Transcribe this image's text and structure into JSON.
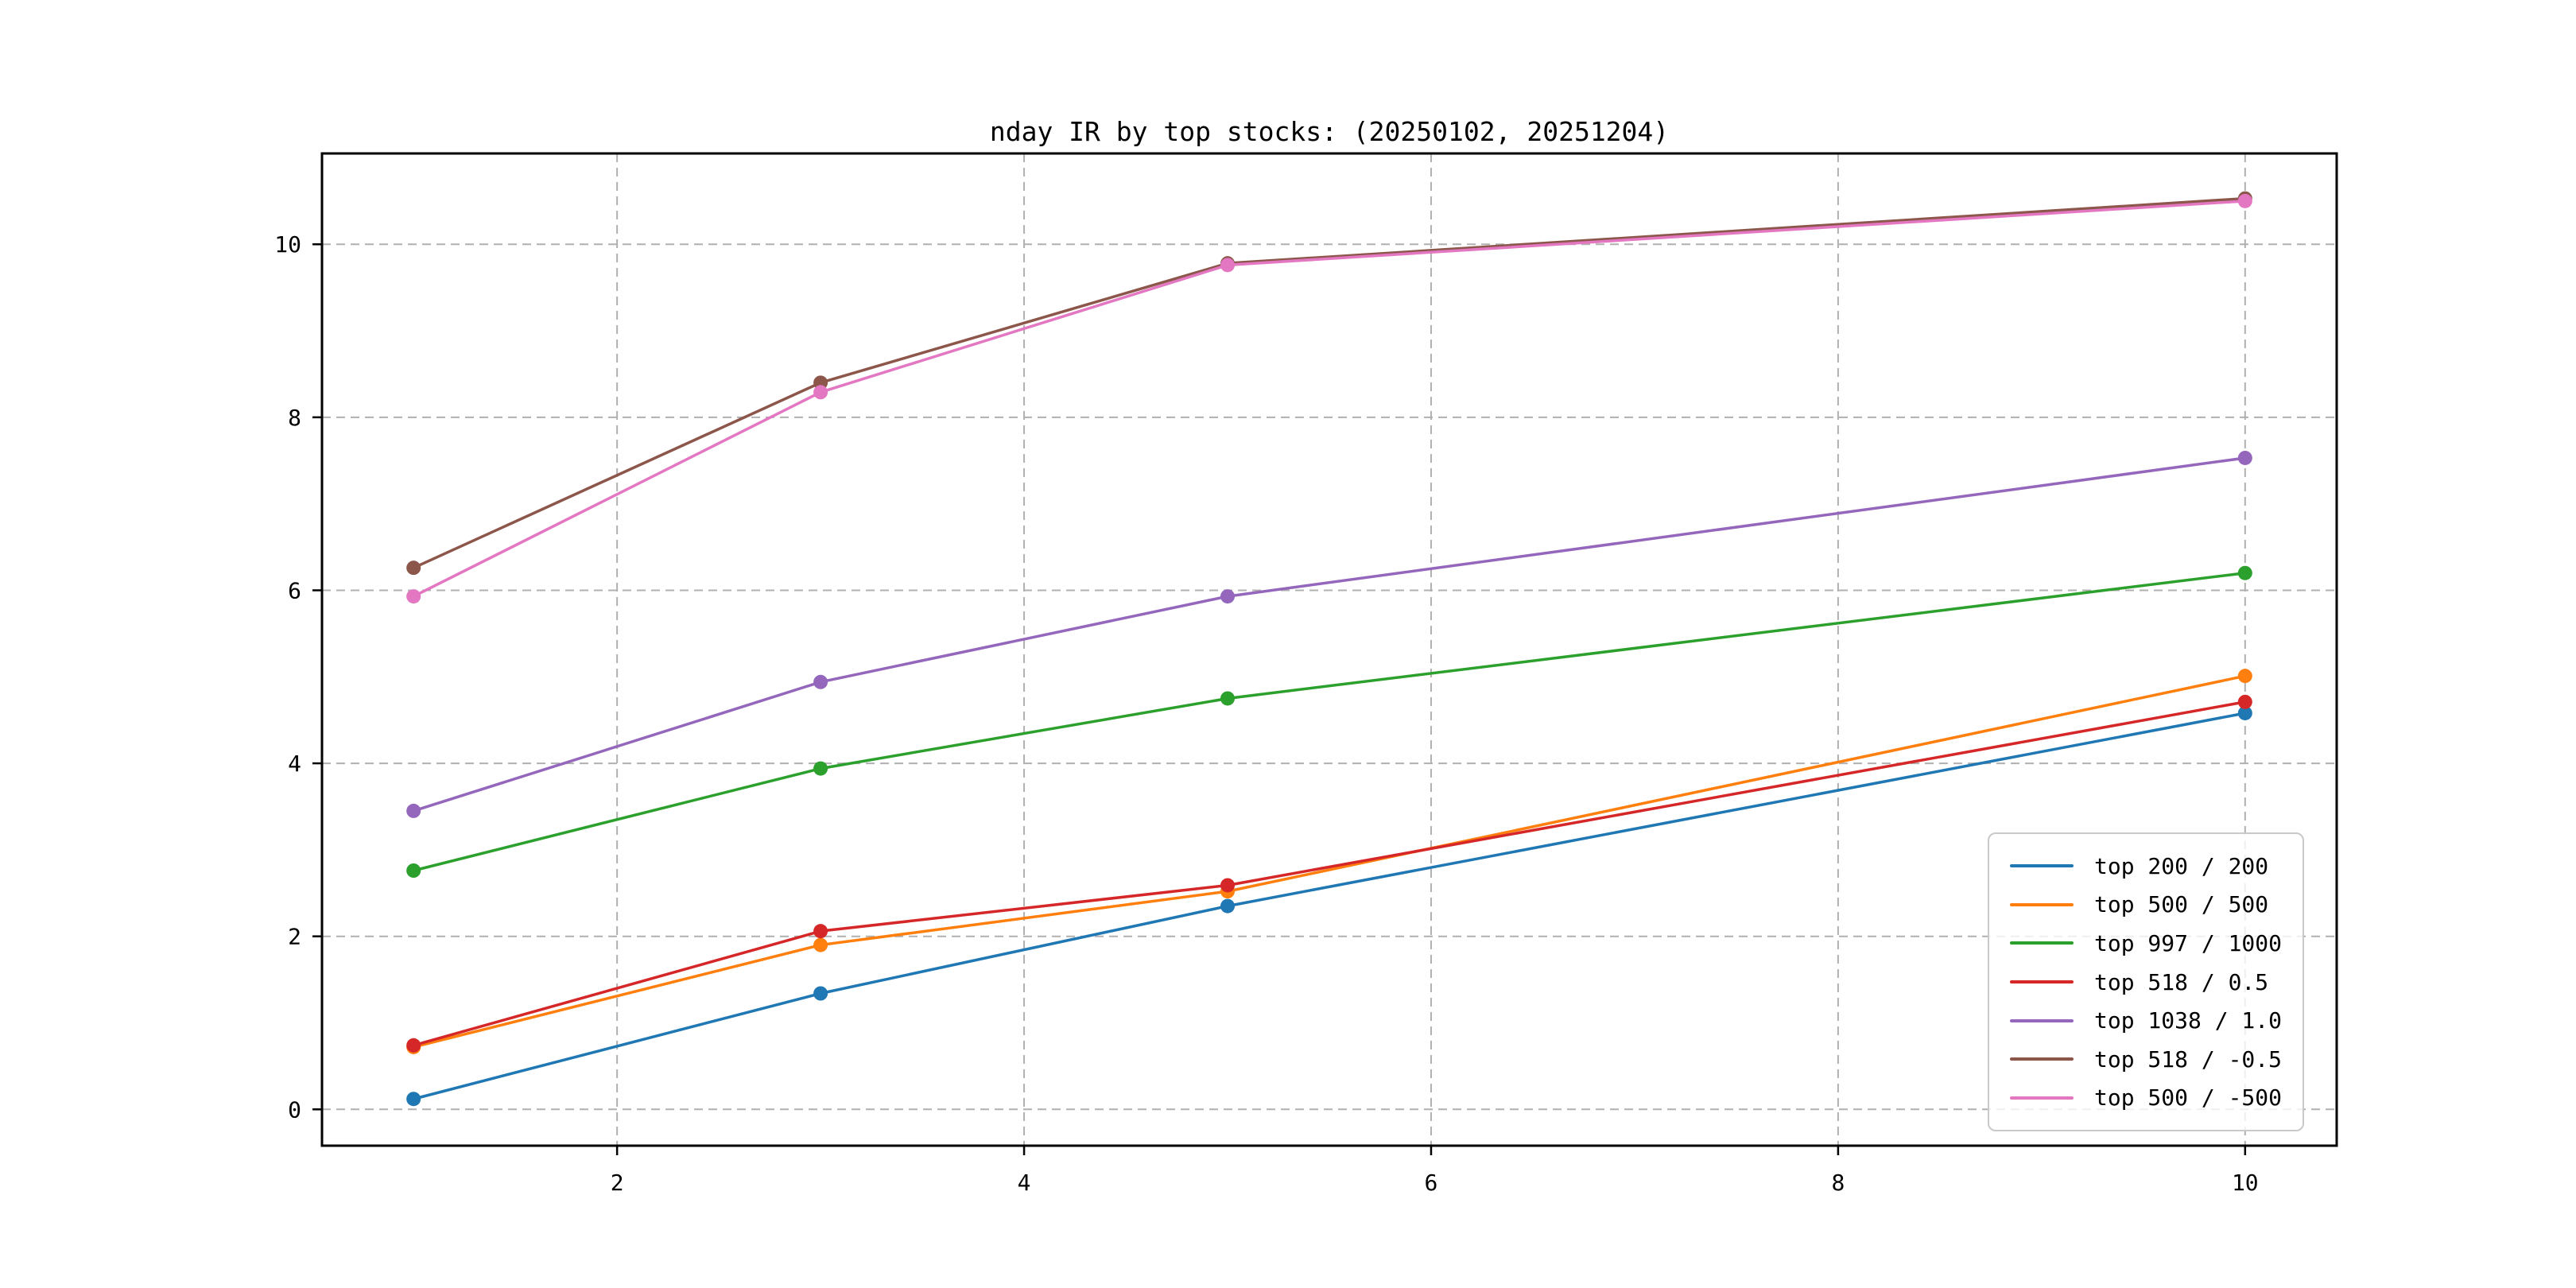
{
  "title": "nday IR by top stocks: (20250102, 20251204)",
  "chart_data": {
    "type": "line",
    "title": "nday IR by top stocks: (20250102, 20251204)",
    "x": [
      1,
      3,
      5,
      10
    ],
    "xticks": [
      2,
      4,
      6,
      8,
      10
    ],
    "yticks": [
      0,
      2,
      4,
      6,
      8,
      10
    ],
    "xlim": [
      0.55,
      10.45
    ],
    "ylim": [
      -0.42,
      11.05
    ],
    "grid": true,
    "grid_style": "dashed",
    "legend_position": "lower right",
    "series": [
      {
        "name": "top 200 / 200",
        "color": "#1f77b4",
        "values": [
          0.12,
          1.34,
          2.35,
          4.58
        ]
      },
      {
        "name": "top 500 / 500",
        "color": "#ff7f0e",
        "values": [
          0.72,
          1.9,
          2.52,
          5.01
        ]
      },
      {
        "name": "top 997 / 1000",
        "color": "#2ca02c",
        "values": [
          2.76,
          3.94,
          4.75,
          6.2
        ]
      },
      {
        "name": "top 518 / 0.5",
        "color": "#d62728",
        "values": [
          0.74,
          2.06,
          2.59,
          4.71
        ]
      },
      {
        "name": "top 1038 / 1.0",
        "color": "#9467bd",
        "values": [
          3.45,
          4.94,
          5.93,
          7.53
        ]
      },
      {
        "name": "top 518 / -0.5",
        "color": "#8c564b",
        "values": [
          6.26,
          8.4,
          9.78,
          10.53
        ]
      },
      {
        "name": "top 500 / -500",
        "color": "#e377c2",
        "values": [
          5.93,
          8.29,
          9.76,
          10.5
        ]
      }
    ]
  },
  "colors": {
    "background": "#ffffff",
    "grid": "#b0b0b0",
    "spine": "#000000",
    "text": "#000000",
    "legend_border": "#c9c9c9"
  }
}
